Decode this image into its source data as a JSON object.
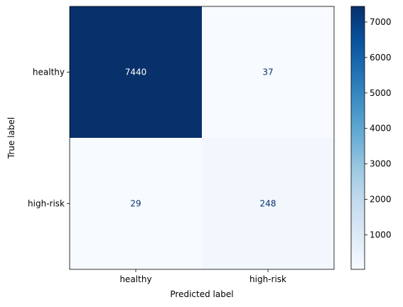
{
  "chart_data": {
    "type": "heatmap",
    "title": "",
    "xlabel": "Predicted label",
    "ylabel": "True label",
    "x_categories": [
      "healthy",
      "high-risk"
    ],
    "y_categories": [
      "healthy",
      "high-risk"
    ],
    "matrix": [
      [
        7440,
        37
      ],
      [
        29,
        248
      ]
    ],
    "colormap": "Blues",
    "colorbar": {
      "ticks": [
        1000,
        2000,
        3000,
        4000,
        5000,
        6000,
        7000
      ],
      "min": 29,
      "max": 7440
    },
    "colors": {
      "light_text": "#ffffff",
      "dark_text": "#08306b",
      "axis": "#000000"
    }
  }
}
